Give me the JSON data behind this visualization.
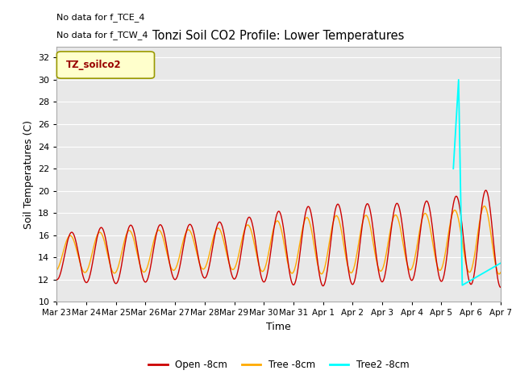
{
  "title": "Tonzi Soil CO2 Profile: Lower Temperatures",
  "xlabel": "Time",
  "ylabel": "Soil Temperatures (C)",
  "ylim": [
    10,
    33
  ],
  "yticks": [
    10,
    12,
    14,
    16,
    18,
    20,
    22,
    24,
    26,
    28,
    30,
    32
  ],
  "fig_bg_color": "#ffffff",
  "plot_bg_color": "#e8e8e8",
  "grid_color": "#ffffff",
  "annotations": [
    "No data for f_TCE_4",
    "No data for f_TCW_4"
  ],
  "legend_box_label": "TZ_soilco2",
  "legend_box_color": "#ffffcc",
  "legend_box_border": "#999900",
  "line_colors": {
    "open": "#cc0000",
    "tree": "#ffaa00",
    "tree2": "#00ffff"
  },
  "legend_labels": [
    "Open -8cm",
    "Tree -8cm",
    "Tree2 -8cm"
  ],
  "x_tick_labels": [
    "Mar 23",
    "Mar 24",
    "Mar 25",
    "Mar 26",
    "Mar 27",
    "Mar 28",
    "Mar 29",
    "Mar 30",
    "Mar 31",
    "Apr 1",
    "Apr 2",
    "Apr 3",
    "Apr 4",
    "Apr 5",
    "Apr 6",
    "Apr 7"
  ]
}
